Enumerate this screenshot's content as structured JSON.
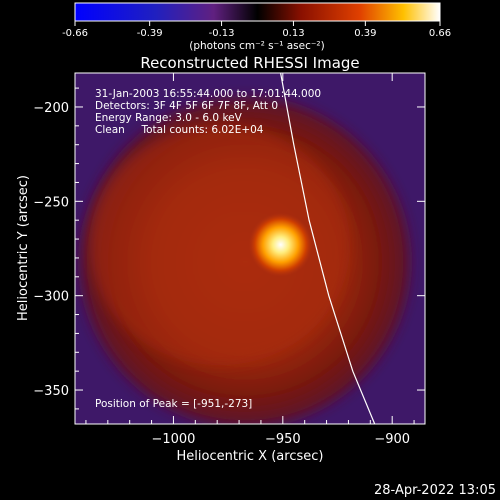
{
  "chart_data": {
    "type": "heatmap",
    "title": "Reconstructed RHESSI Image",
    "colorbar": {
      "ticks": [
        "-0.66",
        "-0.39",
        "-0.13",
        "0.13",
        "0.39",
        "0.66"
      ],
      "tick_values": [
        -0.66,
        -0.39,
        -0.13,
        0.13,
        0.39,
        0.66
      ],
      "range": [
        -0.66,
        0.66
      ],
      "unit_label": "(photons cm⁻² s⁻¹ asec⁻²)"
    },
    "xlabel": "Heliocentric X (arcsec)",
    "ylabel": "Heliocentric Y (arcsec)",
    "xlim": [
      -1045,
      -885
    ],
    "ylim": [
      -368,
      -182
    ],
    "xticks": [
      {
        "value": -1000,
        "label": "−1000"
      },
      {
        "value": -950,
        "label": "−950"
      },
      {
        "value": -900,
        "label": "−900"
      }
    ],
    "yticks": [
      {
        "value": -200,
        "label": "−200"
      },
      {
        "value": -250,
        "label": "−250"
      },
      {
        "value": -300,
        "label": "−300"
      },
      {
        "value": -350,
        "label": "−350"
      }
    ],
    "annotations": [
      "31-Jan-2003 16:55:44.000 to 17:01:44.000",
      "Detectors: 3F 4F 5F 6F 7F 8F, Att 0",
      "Energy Range: 3.0 - 6.0 keV",
      "Clean     Total counts: 6.02E+04"
    ],
    "peak_label": "Position of Peak = [-951,-273]",
    "peak": {
      "x": -951,
      "y": -273
    },
    "limb": [
      {
        "x": -951,
        "y": -182
      },
      {
        "x": -945,
        "y": -220
      },
      {
        "x": -938,
        "y": -260
      },
      {
        "x": -929,
        "y": -300
      },
      {
        "x": -918,
        "y": -340
      },
      {
        "x": -908,
        "y": -368
      }
    ],
    "colors": {
      "background": "#000000",
      "limb": "#ffffff"
    }
  },
  "footer": {
    "date": "28-Apr-2022 13:05"
  }
}
